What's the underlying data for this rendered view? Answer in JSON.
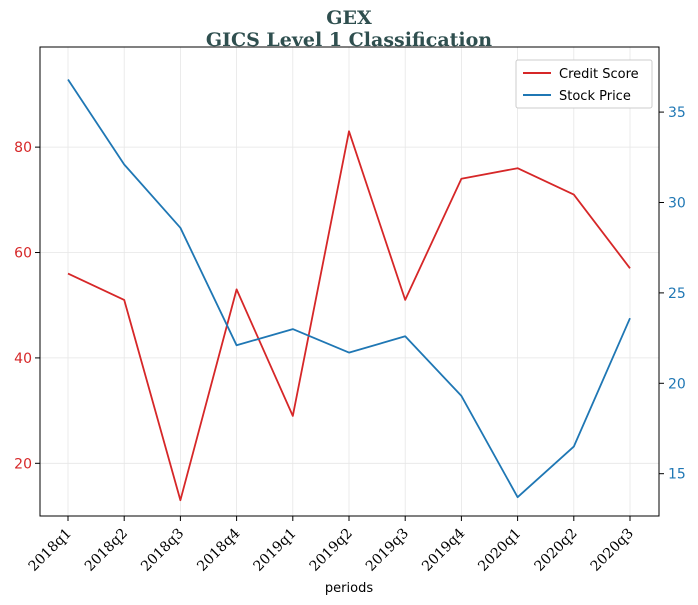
{
  "chart_data": {
    "type": "line",
    "title": "GEX",
    "subtitle": "GICS Level 1 Classification",
    "xlabel": "periods",
    "ylabel_left": "",
    "ylabel_right": "",
    "categories": [
      "2018q1",
      "2018q2",
      "2018q3",
      "2018q4",
      "2019q1",
      "2019q2",
      "2019q3",
      "2019q4",
      "2020q1",
      "2020q2",
      "2020q3"
    ],
    "series": [
      {
        "name": "Credit Score",
        "axis": "left",
        "color": "#d62728",
        "values": [
          56,
          51,
          13,
          53,
          29,
          83,
          51,
          74,
          76,
          71,
          57
        ]
      },
      {
        "name": "Stock Price",
        "axis": "right",
        "color": "#1f77b4",
        "values": [
          36.8,
          32.1,
          28.6,
          22.1,
          23.0,
          21.7,
          22.6,
          19.3,
          13.7,
          16.5,
          23.6
        ]
      }
    ],
    "ylim_left": [
      10,
      99
    ],
    "yticks_left": [
      20,
      40,
      60,
      80
    ],
    "ylim_right": [
      12.66,
      38.6
    ],
    "yticks_right": [
      15,
      20,
      25,
      30,
      35
    ],
    "grid": true,
    "legend_position": "top-right"
  }
}
